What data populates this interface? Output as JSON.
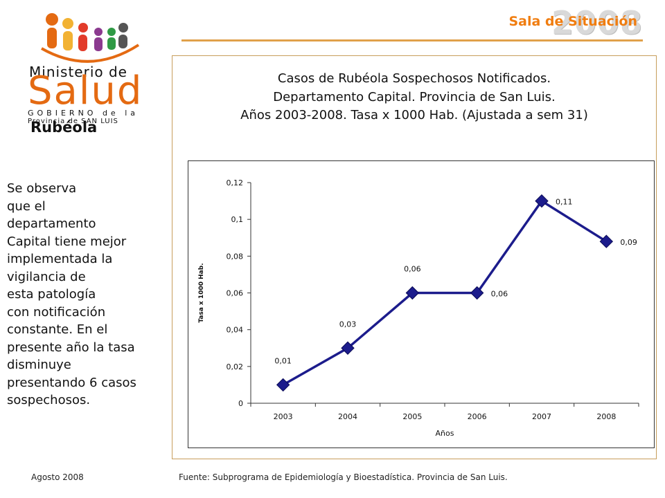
{
  "header": {
    "brand_year": "2008",
    "brand_text": "Sala de Situación"
  },
  "logo": {
    "ministerio": "Ministerio de",
    "salud": "Salud",
    "gobierno": "GOBIERNO de la",
    "provincia": "Provincia de SAN LUIS"
  },
  "sidebar": {
    "title": "Rubéola",
    "text_lines": [
      "Se observa",
      "que el",
      "departamento",
      "Capital tiene mejor",
      "implementada la",
      "vigilancia de",
      "esta patología",
      "con notificación",
      "constante. En el",
      "presente año la tasa",
      "disminuye",
      "presentando 6 casos",
      "sospechosos."
    ]
  },
  "chart_title": {
    "line1": "Casos de Rubéola Sospechosos Notificados.",
    "line2": "Departamento Capital. Provincia de San Luis.",
    "line3": "Años 2003-2008. Tasa x 1000 Hab. (Ajustada a sem 31)"
  },
  "chart_data": {
    "type": "line",
    "categories": [
      "2003",
      "2004",
      "2005",
      "2006",
      "2007",
      "2008"
    ],
    "series": [
      {
        "values": [
          0.01,
          0.03,
          0.06,
          0.06,
          0.11,
          0.088
        ]
      }
    ],
    "data_labels": [
      "0,01",
      "0,03",
      "0,06",
      "0,06",
      "0,11",
      "0,09"
    ],
    "ylim": [
      0,
      0.12
    ],
    "yticks": [
      0,
      0.02,
      0.04,
      0.06,
      0.08,
      0.1,
      0.12
    ],
    "ytick_labels": [
      "0",
      "0,02",
      "0,04",
      "0,06",
      "0,08",
      "0,1",
      "0,12"
    ],
    "xlabel": "Años",
    "ylabel": "Tasa x 1000 Hab.",
    "grid": false,
    "legend": "none",
    "line_color": "#1c1c8c",
    "marker": "diamond"
  },
  "footer": {
    "date": "Agosto 2008",
    "source": "Fuente: Subprograma de Epidemiología y Bioestadística. Provincia de San Luis."
  }
}
